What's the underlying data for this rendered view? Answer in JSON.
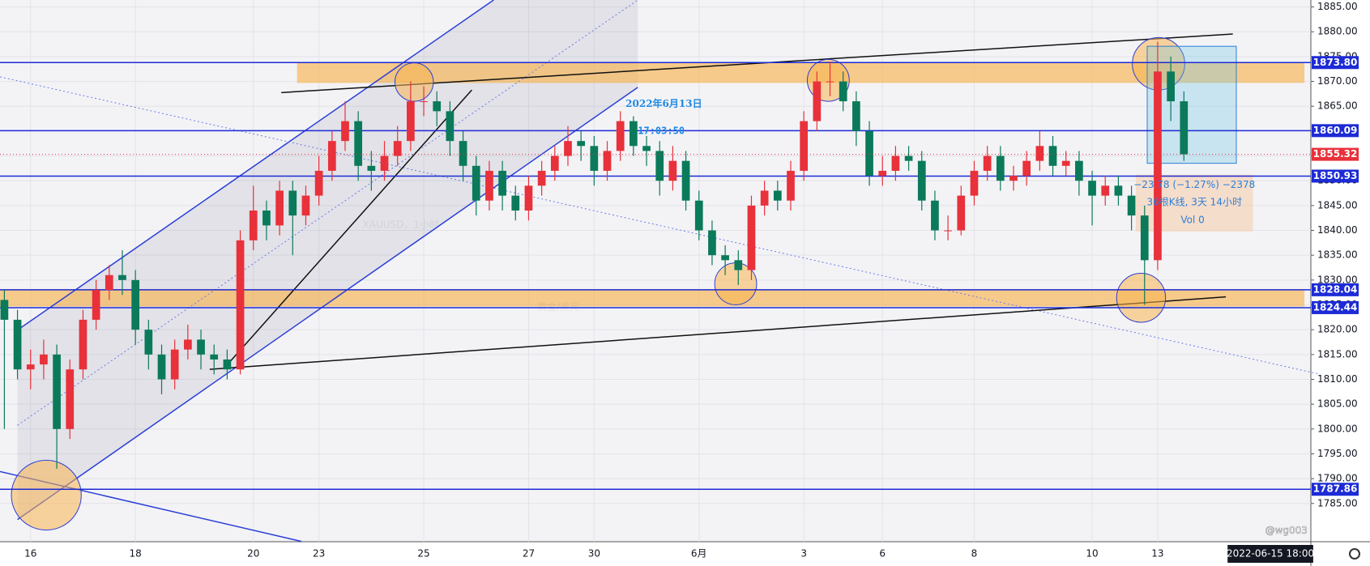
{
  "chart_data": {
    "type": "candlestick",
    "categories": [
      null,
      null,
      "16",
      null,
      null,
      null,
      null,
      null,
      null,
      null,
      "18",
      null,
      null,
      null,
      null,
      null,
      null,
      null,
      null,
      "20",
      null,
      null,
      null,
      null,
      "23",
      null,
      null,
      null,
      null,
      null,
      null,
      null,
      "25",
      null,
      null,
      null,
      null,
      null,
      null,
      null,
      "27",
      null,
      null,
      null,
      null,
      "30",
      null,
      null,
      null,
      null,
      null,
      null,
      null,
      "6月",
      null,
      null,
      null,
      null,
      null,
      null,
      null,
      "3",
      null,
      null,
      null,
      null,
      null,
      "6",
      null,
      null,
      null,
      null,
      null,
      null,
      "8",
      null,
      null,
      null,
      null,
      null,
      null,
      null,
      null,
      "10",
      null,
      null,
      null,
      null,
      "13",
      null,
      null
    ],
    "open": [
      1826,
      1822,
      1812,
      1813,
      1815,
      1800,
      1812,
      1822,
      1828,
      1831,
      1830,
      1820,
      1815,
      1810,
      1816,
      1818,
      1815,
      1814,
      1812,
      1838,
      1844,
      1841,
      1848,
      1843,
      1847,
      1852,
      1858,
      1862,
      1853,
      1852,
      1855,
      1858,
      1866,
      1866,
      1864,
      1858,
      1853,
      1846,
      1852,
      1847,
      1844,
      1849,
      1852,
      1855,
      1858,
      1857,
      1852,
      1856,
      1862,
      1857,
      1856,
      1850,
      1854,
      1846,
      1840,
      1835,
      1834,
      1832,
      1845,
      1848,
      1846,
      1852,
      1862,
      1870,
      1870,
      1866,
      1860,
      1851,
      1852,
      1855,
      1854,
      1846,
      1840,
      1840,
      1847,
      1852,
      1855,
      1850,
      1851,
      1854,
      1857,
      1853,
      1854,
      1850,
      1847,
      1849,
      1847,
      1843,
      1834,
      1872,
      1866
    ],
    "high": [
      1828,
      1824,
      1816,
      1818,
      1817,
      1814,
      1824,
      1830,
      1833,
      1836,
      1832,
      1822,
      1817,
      1818,
      1821,
      1820,
      1817,
      1816,
      1840,
      1849,
      1846,
      1850,
      1850,
      1849,
      1855,
      1860,
      1866,
      1864,
      1856,
      1858,
      1861,
      1870,
      1869,
      1868,
      1866,
      1860,
      1855,
      1854,
      1854,
      1849,
      1851,
      1854,
      1857,
      1861,
      1860,
      1859,
      1858,
      1864,
      1863,
      1859,
      1858,
      1857,
      1856,
      1848,
      1842,
      1837,
      1836,
      1847,
      1850,
      1850,
      1854,
      1864,
      1872,
      1874,
      1872,
      1868,
      1862,
      1855,
      1857,
      1857,
      1856,
      1848,
      1843,
      1849,
      1854,
      1857,
      1857,
      1853,
      1856,
      1860,
      1859,
      1856,
      1856,
      1852,
      1851,
      1851,
      1849,
      1845,
      1878,
      1875,
      1868
    ],
    "low": [
      1800,
      1810,
      1808,
      1810,
      1792,
      1798,
      1810,
      1820,
      1826,
      1827,
      1817,
      1812,
      1807,
      1808,
      1814,
      1812,
      1811,
      1810,
      1811,
      1836,
      1838,
      1839,
      1835,
      1841,
      1845,
      1850,
      1856,
      1850,
      1848,
      1850,
      1853,
      1856,
      1863,
      1861,
      1855,
      1850,
      1843,
      1844,
      1844,
      1842,
      1842,
      1847,
      1850,
      1853,
      1854,
      1849,
      1850,
      1854,
      1855,
      1853,
      1847,
      1848,
      1844,
      1838,
      1833,
      1831,
      1829,
      1830,
      1843,
      1844,
      1844,
      1850,
      1860,
      1867,
      1864,
      1857,
      1849,
      1849,
      1850,
      1852,
      1844,
      1838,
      1838,
      1839,
      1845,
      1850,
      1848,
      1848,
      1849,
      1852,
      1851,
      1851,
      1847,
      1841,
      1845,
      1845,
      1840,
      1825,
      1832,
      1862,
      1854
    ],
    "close": [
      1822,
      1812,
      1813,
      1815,
      1800,
      1812,
      1822,
      1828,
      1831,
      1830,
      1820,
      1815,
      1810,
      1816,
      1818,
      1815,
      1814,
      1812,
      1838,
      1844,
      1841,
      1848,
      1843,
      1847,
      1852,
      1858,
      1862,
      1853,
      1852,
      1855,
      1858,
      1866,
      1866,
      1864,
      1858,
      1853,
      1846,
      1852,
      1847,
      1844,
      1849,
      1852,
      1855,
      1858,
      1857,
      1852,
      1856,
      1862,
      1857,
      1856,
      1850,
      1854,
      1846,
      1840,
      1835,
      1834,
      1832,
      1845,
      1848,
      1846,
      1852,
      1862,
      1870,
      1870,
      1866,
      1860,
      1851,
      1852,
      1855,
      1854,
      1846,
      1840,
      1840,
      1847,
      1852,
      1855,
      1850,
      1851,
      1854,
      1857,
      1853,
      1854,
      1850,
      1847,
      1849,
      1847,
      1843,
      1834,
      1872,
      1866,
      1855.32
    ],
    "up_color": "#e8313a",
    "down_color": "#0b7a5a",
    "level_color": "#1d2bd6",
    "ylim": [
      1777.3,
      1886.4
    ],
    "yticks": [
      {
        "value": 1785,
        "label": "1785.00"
      },
      {
        "value": 1790,
        "label": "1790.00"
      },
      {
        "value": 1795,
        "label": "1795.00"
      },
      {
        "value": 1800,
        "label": "1800.00"
      },
      {
        "value": 1805,
        "label": "1805.00"
      },
      {
        "value": 1810,
        "label": "1810.00"
      },
      {
        "value": 1815,
        "label": "1815.00"
      },
      {
        "value": 1820,
        "label": "1820.00"
      },
      {
        "value": 1825,
        "label": "1825.00"
      },
      {
        "value": 1830,
        "label": "1830.00"
      },
      {
        "value": 1835,
        "label": "1835.00"
      },
      {
        "value": 1840,
        "label": "1840.00"
      },
      {
        "value": 1845,
        "label": "1845.00"
      },
      {
        "value": 1850,
        "label": "1850.00"
      },
      {
        "value": 1855,
        "label": "1855.00"
      },
      {
        "value": 1860,
        "label": "1860.00"
      },
      {
        "value": 1865,
        "label": "1865.00"
      },
      {
        "value": 1870,
        "label": "1870.00"
      },
      {
        "value": 1875,
        "label": "1875.00"
      },
      {
        "value": 1880,
        "label": "1880.00"
      },
      {
        "value": 1885,
        "label": "1885.00"
      }
    ],
    "levels": [
      {
        "value": 1873.8,
        "label": "1873.80"
      },
      1860.09,
      1850.93,
      1828.04,
      1824.44,
      1787.86
    ],
    "grid": true,
    "annotations": {
      "date": "2022年6月13日",
      "time": "17:03:50",
      "watermark": "XAUUSD，1小时",
      "watermark_sub": "黄金/美元",
      "measure_change": "−23.78 (−1.27%) −2378",
      "measure_span": "36根K线, 3天 14小时",
      "measure_volume": "Vol 0",
      "crosshair_time": "2022-06-15 18:00",
      "author": "@wg003"
    }
  }
}
